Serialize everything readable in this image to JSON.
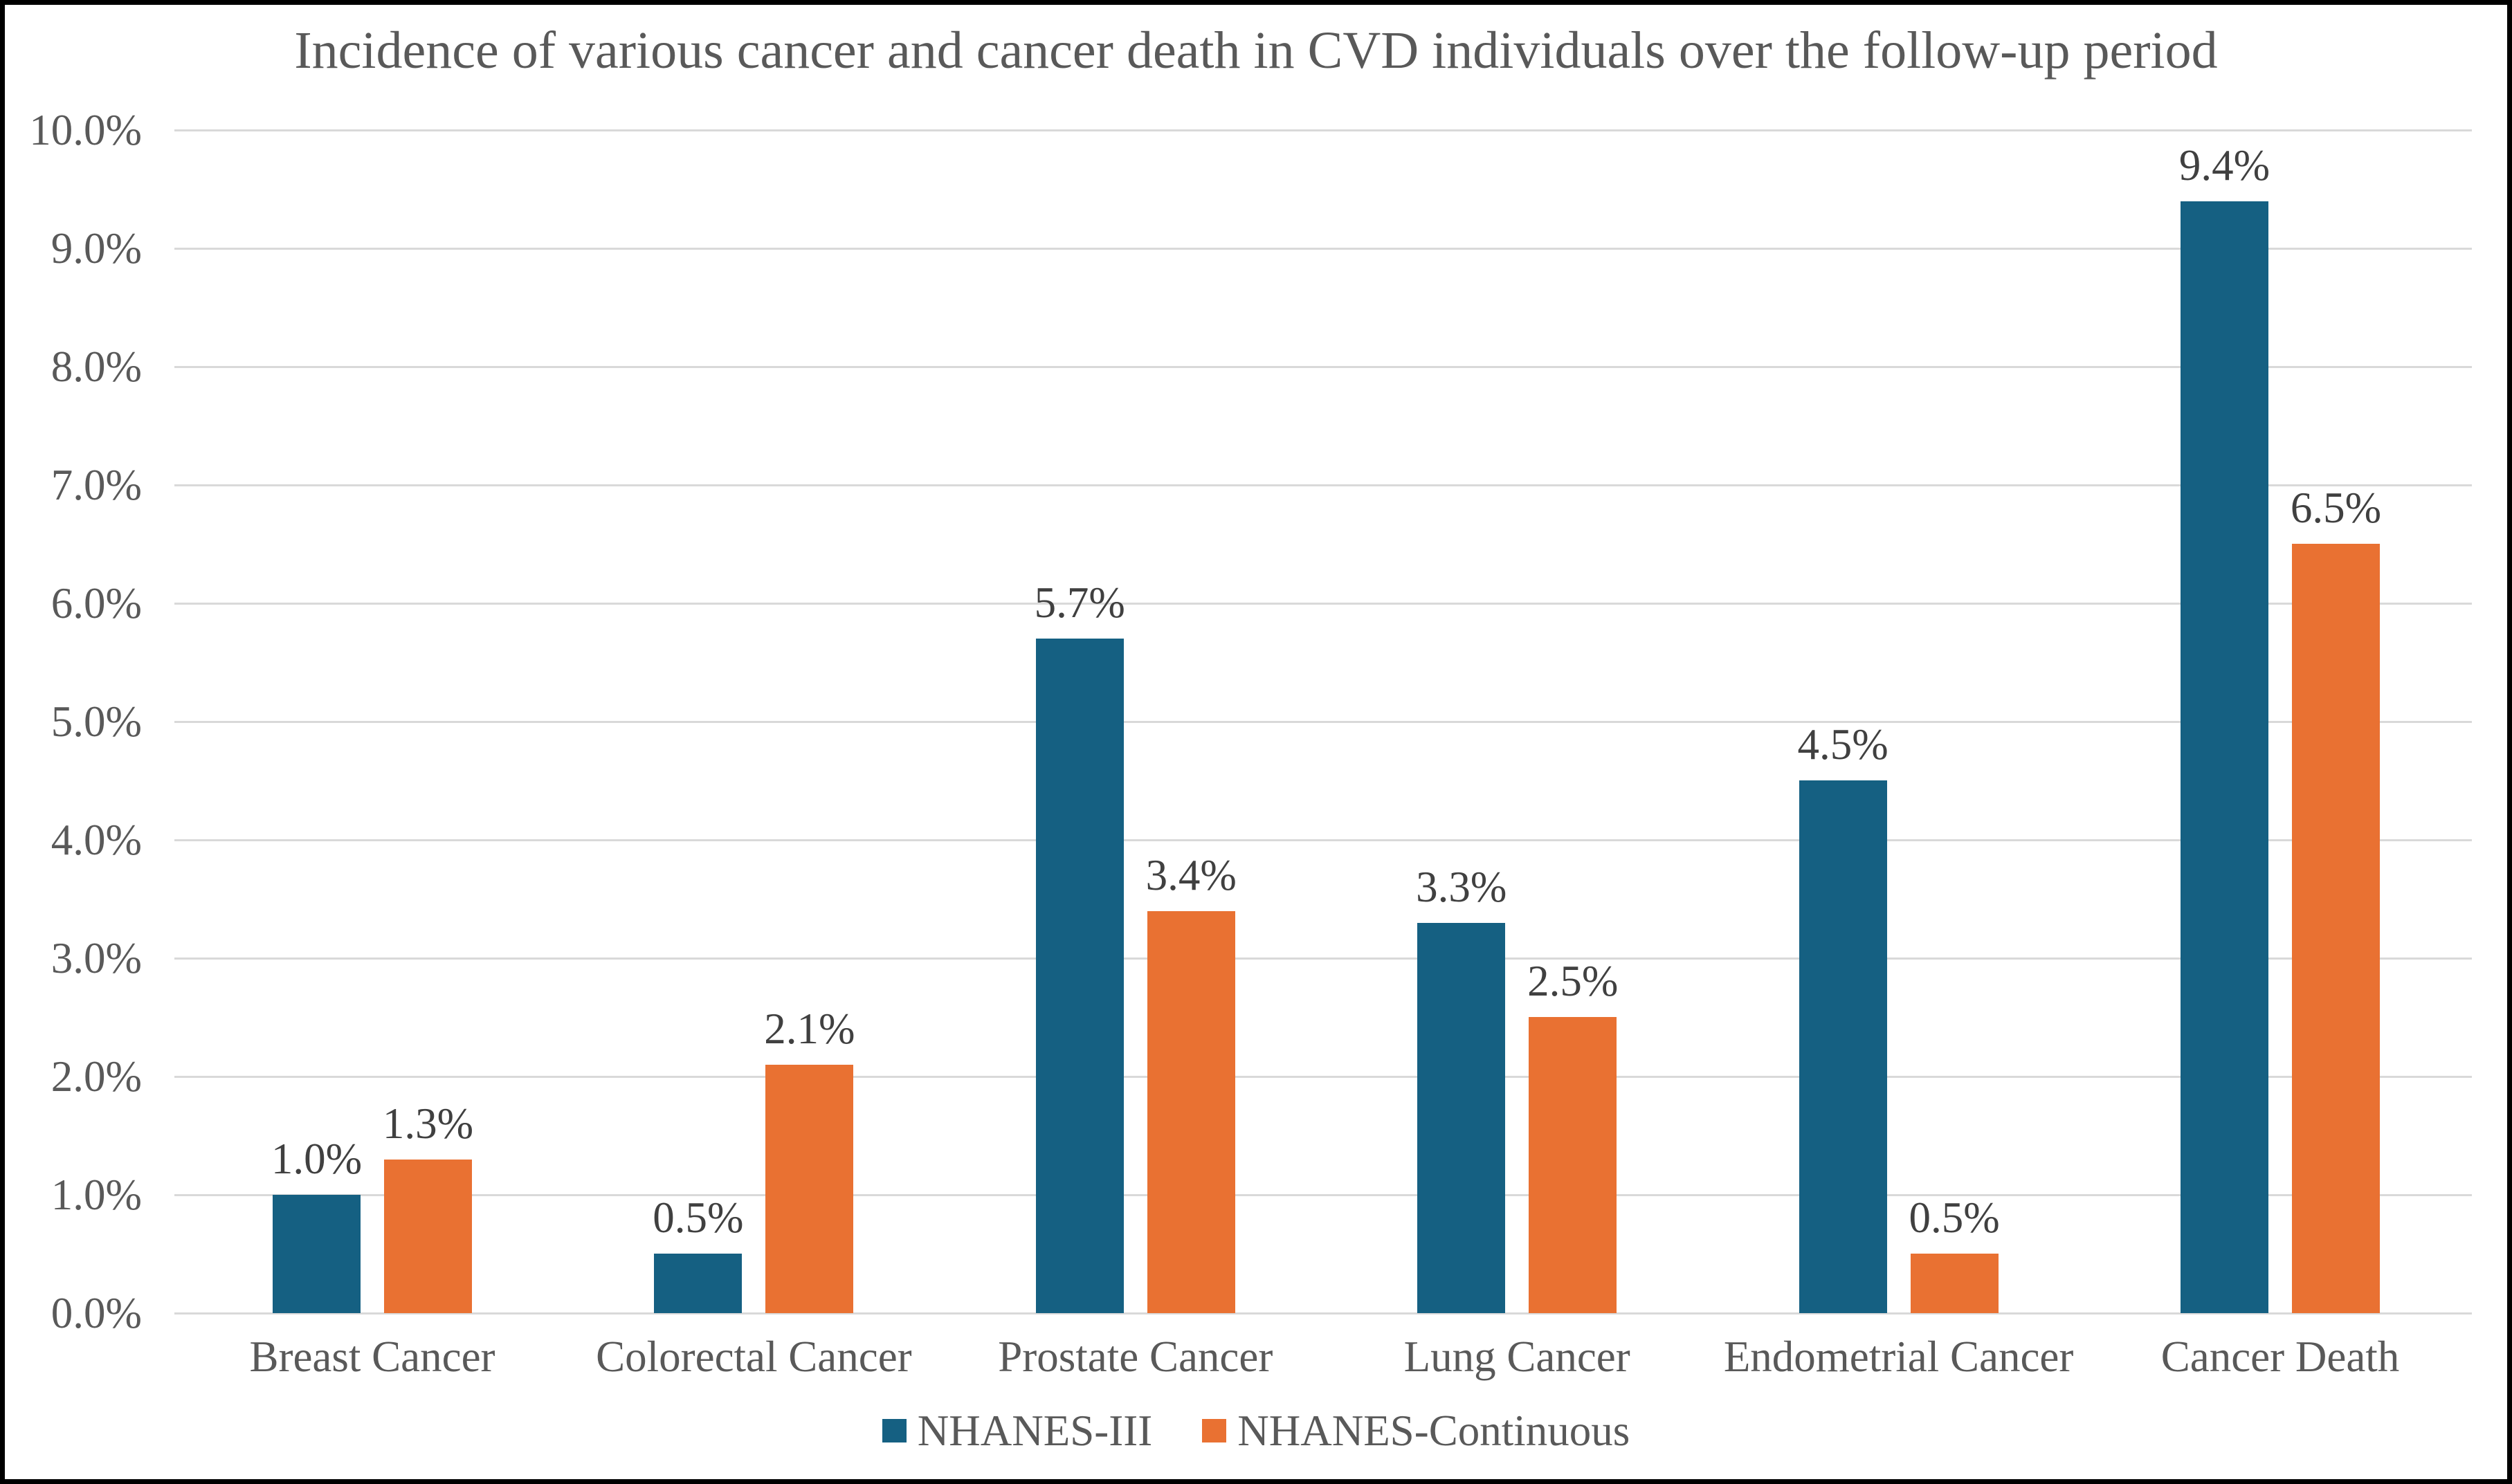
{
  "chart_data": {
    "type": "bar",
    "title": "Incidence of various cancer and cancer death in CVD individuals over the follow-up period",
    "categories": [
      "Breast Cancer",
      "Colorectal Cancer",
      "Prostate Cancer",
      "Lung Cancer",
      "Endometrial Cancer",
      "Cancer Death"
    ],
    "series": [
      {
        "name": "NHANES-III",
        "color": "#156082",
        "values": [
          1.0,
          0.5,
          5.7,
          3.3,
          4.5,
          9.4
        ],
        "data_labels": [
          "1.0%",
          "0.5%",
          "5.7%",
          "3.3%",
          "4.5%",
          "9.4%"
        ]
      },
      {
        "name": "NHANES-Continuous",
        "color": "#E97132",
        "values": [
          1.3,
          2.1,
          3.4,
          2.5,
          0.5,
          6.5
        ],
        "data_labels": [
          "1.3%",
          "2.1%",
          "3.4%",
          "2.5%",
          "0.5%",
          "6.5%"
        ]
      }
    ],
    "y_axis": {
      "tick_labels": [
        "0.0%",
        "1.0%",
        "2.0%",
        "3.0%",
        "4.0%",
        "5.0%",
        "6.0%",
        "7.0%",
        "8.0%",
        "9.0%",
        "10.0%"
      ],
      "min": 0,
      "max": 10,
      "step": 1
    },
    "grid": true,
    "legend_position": "bottom",
    "styles": {
      "title_color": "#595959",
      "axis_text_color": "#595959",
      "data_label_color": "#404040",
      "gridline_color": "#D9D9D9",
      "background": "#FFFFFF",
      "border_color": "#000000"
    }
  }
}
